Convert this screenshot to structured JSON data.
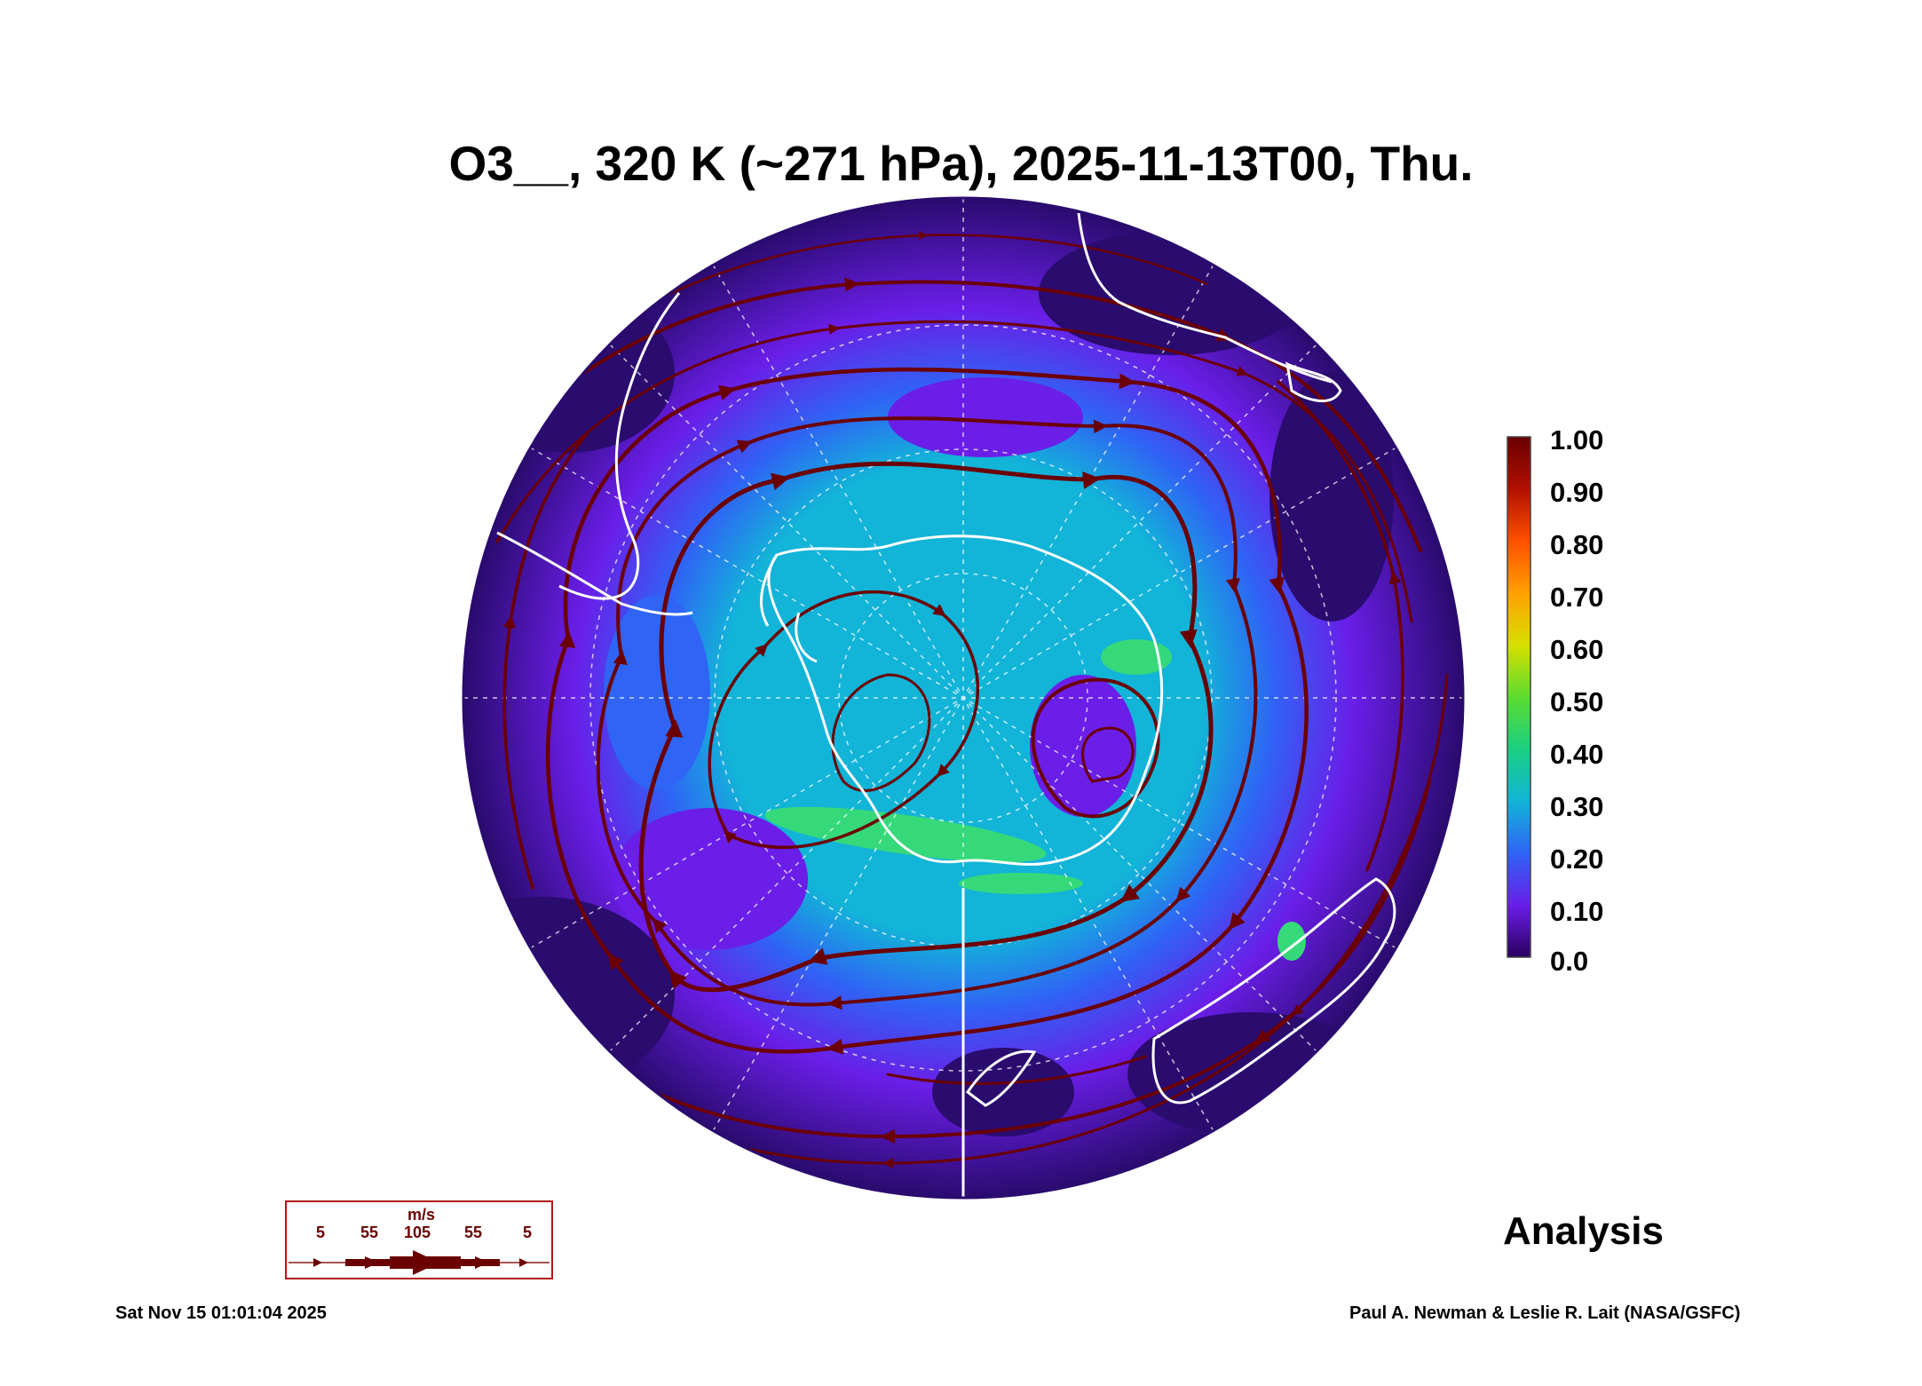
{
  "title": "O3__, 320 K (~271 hPa), 2025-11-13T00, Thu.",
  "colorbar": {
    "labels": [
      "1.00",
      "0.90",
      "0.80",
      "0.70",
      "0.60",
      "0.50",
      "0.40",
      "0.30",
      "0.20",
      "0.10",
      "0.0"
    ],
    "colors": [
      "#2a0060",
      "#4a10b8",
      "#7a28f0",
      "#3c6cff",
      "#12b4d8",
      "#1ad470",
      "#8fe020",
      "#f2d600",
      "#ff8c00",
      "#e02a00",
      "#6a0000"
    ]
  },
  "map": {
    "field_colors": {
      "low": "#2a0b6e",
      "mid_low": "#6a1ee8",
      "mid": "#2f64f5",
      "high": "#0fb0cf",
      "highest": "#35d97a"
    },
    "streamline_color": "#6b0000",
    "coastline_color": "#ffffff"
  },
  "wind_legend": {
    "unit": "m/s",
    "speeds": [
      "5",
      "55",
      "105",
      "55",
      "5"
    ]
  },
  "analysis_label": "Analysis",
  "timestamp": "Sat Nov 15 01:01:04 2025",
  "credit": "Paul A. Newman & Leslie R. Lait (NASA/GSFC)"
}
